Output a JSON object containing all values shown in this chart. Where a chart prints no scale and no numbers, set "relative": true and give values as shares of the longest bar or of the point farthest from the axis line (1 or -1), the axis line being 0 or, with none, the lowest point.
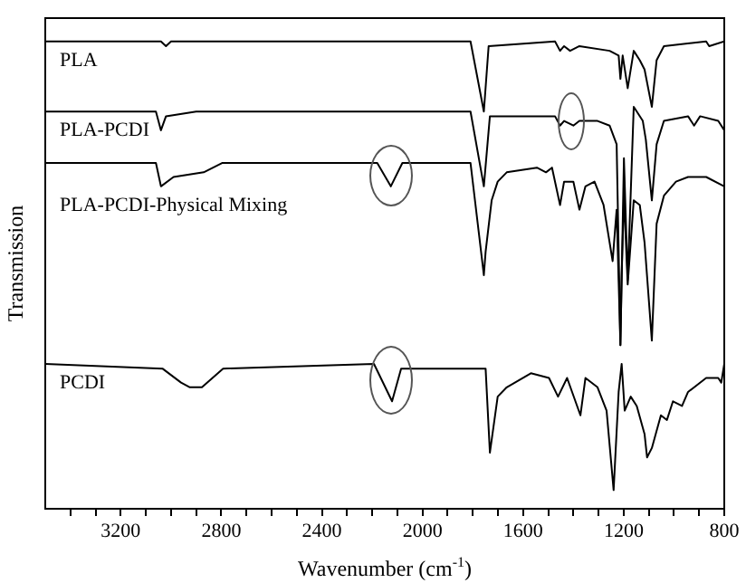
{
  "chart_data": {
    "type": "line",
    "relative": true,
    "xlabel": "Wavenumber (cm$^{-1}$)",
    "ylabel": "Transmission",
    "xlim": [
      3500,
      800
    ],
    "xticks": [
      {
        "value": 3400,
        "label": null
      },
      {
        "value": 3300,
        "label": null
      },
      3200,
      {
        "value": 3100,
        "label": null
      },
      {
        "value": 3000,
        "label": null
      },
      {
        "value": 2900,
        "label": null
      },
      2800,
      {
        "value": 2700,
        "label": null
      },
      {
        "value": 2600,
        "label": null
      },
      {
        "value": 2500,
        "label": null
      },
      2400,
      {
        "value": 2300,
        "label": null
      },
      {
        "value": 2200,
        "label": null
      },
      {
        "value": 2100,
        "label": null
      },
      2000,
      {
        "value": 1900,
        "label": null
      },
      {
        "value": 1800,
        "label": null
      },
      {
        "value": 1700,
        "label": null
      },
      1600,
      {
        "value": 1500,
        "label": null
      },
      {
        "value": 1400,
        "label": null
      },
      {
        "value": 1300,
        "label": null
      },
      1200,
      {
        "value": 1100,
        "label": null
      },
      {
        "value": 1000,
        "label": null
      },
      {
        "value": 900,
        "label": null
      },
      800
    ],
    "grid": false,
    "legend": false,
    "marker": "none",
    "line_style": "solid",
    "series": [
      {
        "name": "PLA",
        "color": "#000000",
        "x": [
          3500,
          3040,
          3020,
          3000,
          1809,
          1756,
          1737,
          1473,
          1453,
          1437,
          1413,
          1376,
          1256,
          1220,
          1213,
          1204,
          1184,
          1160,
          1136,
          1117,
          1088,
          1069,
          1040,
          872,
          860,
          800
        ],
        "values": [
          1.0,
          1.0,
          0.99,
          1.0,
          1.0,
          0.85,
          0.99,
          1.0,
          0.98,
          0.99,
          0.98,
          0.99,
          0.98,
          0.97,
          0.92,
          0.97,
          0.9,
          0.98,
          0.96,
          0.94,
          0.86,
          0.96,
          0.99,
          1.0,
          0.99,
          1.0
        ]
      },
      {
        "name": "PLA-PCDI",
        "color": "#000000",
        "x": [
          3500,
          3060,
          3040,
          3020,
          2900,
          2400,
          1809,
          1756,
          1732,
          1473,
          1453,
          1437,
          1400,
          1376,
          1304,
          1256,
          1228,
          1213,
          1199,
          1184,
          1160,
          1124,
          1112,
          1088,
          1069,
          1040,
          944,
          920,
          896,
          824,
          800
        ],
        "values": [
          0.85,
          0.85,
          0.81,
          0.84,
          0.85,
          0.85,
          0.85,
          0.69,
          0.84,
          0.84,
          0.82,
          0.83,
          0.82,
          0.83,
          0.83,
          0.82,
          0.78,
          0.35,
          0.75,
          0.49,
          0.86,
          0.83,
          0.79,
          0.66,
          0.78,
          0.83,
          0.84,
          0.82,
          0.84,
          0.83,
          0.81
        ]
      },
      {
        "name": "PLA-PCDI-Physical Mixing",
        "color": "#000000",
        "x": [
          3500,
          3060,
          3040,
          2990,
          2870,
          2797,
          2400,
          2180,
          2126,
          2080,
          1809,
          1756,
          1749,
          1725,
          1701,
          1665,
          1545,
          1509,
          1485,
          1453,
          1437,
          1400,
          1376,
          1352,
          1316,
          1280,
          1244,
          1228,
          1213,
          1208,
          1199,
          1184,
          1160,
          1136,
          1117,
          1088,
          1069,
          1040,
          992,
          944,
          872,
          800
        ],
        "values": [
          0.74,
          0.74,
          0.69,
          0.71,
          0.72,
          0.74,
          0.74,
          0.74,
          0.69,
          0.74,
          0.74,
          0.5,
          0.55,
          0.66,
          0.7,
          0.72,
          0.73,
          0.72,
          0.73,
          0.65,
          0.7,
          0.7,
          0.64,
          0.69,
          0.7,
          0.65,
          0.53,
          0.64,
          0.35,
          0.5,
          0.67,
          0.48,
          0.66,
          0.65,
          0.57,
          0.36,
          0.61,
          0.67,
          0.7,
          0.71,
          0.71,
          0.69
        ]
      },
      {
        "name": "PCDI",
        "color": "#000000",
        "x": [
          3500,
          3034,
          2960,
          2925,
          2877,
          2793,
          2193,
          2121,
          2085,
          1773,
          1749,
          1732,
          1701,
          1665,
          1569,
          1497,
          1461,
          1425,
          1372,
          1352,
          1304,
          1268,
          1240,
          1220,
          1208,
          1196,
          1172,
          1148,
          1117,
          1107,
          1088,
          1052,
          1028,
          1004,
          968,
          944,
          872,
          824,
          812,
          800
        ],
        "values": [
          0.31,
          0.3,
          0.27,
          0.26,
          0.26,
          0.3,
          0.31,
          0.23,
          0.3,
          0.3,
          0.3,
          0.12,
          0.24,
          0.26,
          0.29,
          0.28,
          0.24,
          0.28,
          0.2,
          0.28,
          0.26,
          0.21,
          0.04,
          0.25,
          0.31,
          0.21,
          0.24,
          0.22,
          0.16,
          0.11,
          0.13,
          0.2,
          0.19,
          0.23,
          0.22,
          0.25,
          0.28,
          0.28,
          0.27,
          0.31
        ]
      }
    ]
  }
}
